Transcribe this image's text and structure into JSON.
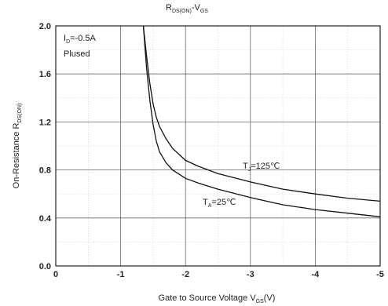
{
  "chart_data": {
    "type": "line",
    "title": {
      "main": "R",
      "sub": "DS(ON)",
      "rest": "-V",
      "sub2": "GS"
    },
    "xlabel": {
      "main": "Gate to Source Voltage V",
      "sub": "GS",
      "rest": "(V)"
    },
    "ylabel": {
      "main": "On-Resistance R",
      "sub": "DS(ON)"
    },
    "xlim": [
      0,
      -5
    ],
    "ylim": [
      0.0,
      2.0
    ],
    "x_ticks": [
      "0",
      "-1",
      "-2",
      "-3",
      "-4",
      "-5"
    ],
    "y_ticks": [
      "0.0",
      "0.4",
      "0.8",
      "1.2",
      "1.6",
      "2.0"
    ],
    "grid": true,
    "annotations": {
      "id": {
        "main": "I",
        "sub": "D",
        "rest": "=-0.5A"
      },
      "pulsed": "Plused"
    },
    "series": [
      {
        "name": {
          "main": "T",
          "sub": "J",
          "rest": "=125℃"
        },
        "x": [
          -1.35,
          -1.4,
          -1.45,
          -1.5,
          -1.55,
          -1.6,
          -1.7,
          -1.8,
          -2.0,
          -2.2,
          -2.5,
          -3.0,
          -3.5,
          -4.0,
          -4.5,
          -5.0
        ],
        "y": [
          2.0,
          1.75,
          1.52,
          1.35,
          1.24,
          1.16,
          1.06,
          0.98,
          0.88,
          0.83,
          0.77,
          0.7,
          0.64,
          0.6,
          0.565,
          0.54
        ]
      },
      {
        "name": {
          "main": "T",
          "sub": "A",
          "rest": "=25℃"
        },
        "x": [
          -1.35,
          -1.4,
          -1.45,
          -1.5,
          -1.55,
          -1.6,
          -1.7,
          -1.8,
          -2.0,
          -2.2,
          -2.5,
          -3.0,
          -3.5,
          -4.0,
          -4.5,
          -5.0
        ],
        "y": [
          2.0,
          1.65,
          1.38,
          1.18,
          1.04,
          0.95,
          0.86,
          0.8,
          0.73,
          0.69,
          0.64,
          0.57,
          0.51,
          0.47,
          0.44,
          0.41
        ]
      }
    ]
  }
}
